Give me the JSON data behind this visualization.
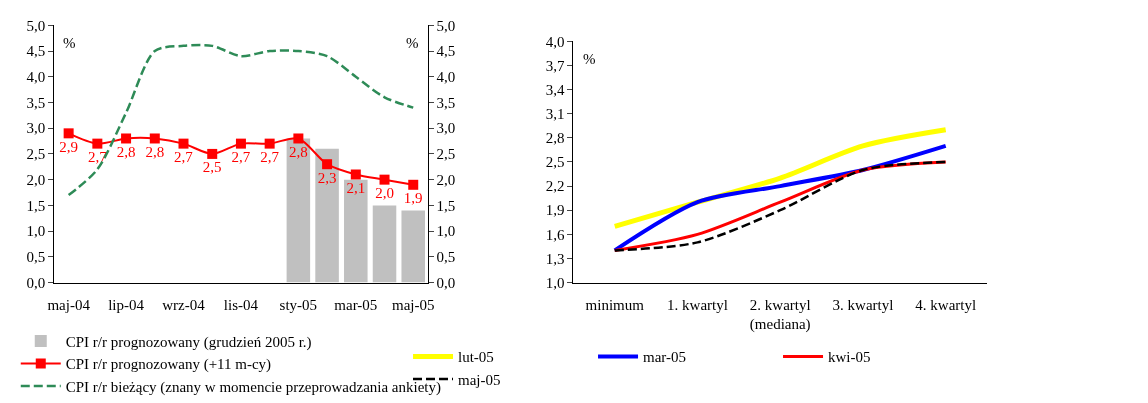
{
  "chart_data": [
    {
      "type": "line",
      "ylabel": "%",
      "y2label": "%",
      "categories": [
        "maj-04",
        null,
        "lip-04",
        null,
        "wrz-04",
        null,
        "lis-04",
        null,
        "sty-05",
        null,
        "mar-05",
        null,
        "maj-05"
      ],
      "series": [
        {
          "name": "CPI r/r prognozowany (grudzień 2005 r.)",
          "type": "bar",
          "color": "#c0c0c0",
          "values": [
            null,
            null,
            null,
            null,
            null,
            null,
            null,
            null,
            2.8,
            2.6,
            2.0,
            1.5,
            1.4
          ]
        },
        {
          "name": "CPI r/r prognozowany (+11 m-cy)",
          "type": "line",
          "color": "#ff0000",
          "marker": "square",
          "line_style": "solid",
          "values": [
            2.9,
            2.7,
            2.8,
            2.8,
            2.7,
            2.5,
            2.7,
            2.7,
            2.8,
            2.3,
            2.1,
            2.0,
            1.9
          ],
          "value_labels": [
            "2,9",
            "2,7",
            "2,8",
            "2,8",
            "2,7",
            "2,5",
            "2,7",
            "2,7",
            "2,8",
            "2,3",
            "2,1",
            "2,0",
            "1,9"
          ]
        },
        {
          "name": "CPI r/r bieżący (znany w momencie przeprowadzania ankiety)",
          "type": "line",
          "axis": "y2",
          "color": "#2e8b57",
          "line_style": "dashed",
          "values": [
            1.7,
            2.2,
            3.3,
            4.5,
            4.6,
            4.6,
            4.4,
            4.5,
            4.5,
            4.4,
            4.0,
            3.6,
            3.4
          ]
        }
      ],
      "ylim": [
        0,
        5
      ],
      "yticks": [
        {
          "value": 0,
          "label": "0,0"
        },
        {
          "value": 0.5,
          "label": "0,5"
        },
        {
          "value": 1,
          "label": "1,0"
        },
        {
          "value": 1.5,
          "label": "1,5"
        },
        {
          "value": 2,
          "label": "2,0"
        },
        {
          "value": 2.5,
          "label": "2,5"
        },
        {
          "value": 3,
          "label": "3,0"
        },
        {
          "value": 3.5,
          "label": "3,5"
        },
        {
          "value": 4,
          "label": "4,0"
        },
        {
          "value": 4.5,
          "label": "4,5"
        },
        {
          "value": 5,
          "label": "5,0"
        }
      ],
      "y2lim": [
        0,
        5
      ],
      "y2ticks": [
        {
          "value": 0,
          "label": "0,0"
        },
        {
          "value": 0.5,
          "label": "0,5"
        },
        {
          "value": 1,
          "label": "1,0"
        },
        {
          "value": 1.5,
          "label": "1,5"
        },
        {
          "value": 2,
          "label": "2,0"
        },
        {
          "value": 2.5,
          "label": "2,5"
        },
        {
          "value": 3,
          "label": "3,0"
        },
        {
          "value": 3.5,
          "label": "3,5"
        },
        {
          "value": 4,
          "label": "4,0"
        },
        {
          "value": 4.5,
          "label": "4,5"
        },
        {
          "value": 5,
          "label": "5,0"
        }
      ],
      "grid": false,
      "legend": "bottom"
    },
    {
      "type": "line",
      "ylabel": "%",
      "categories": [
        "minimum",
        "1. kwartyl",
        "2. kwartyl\n(mediana)",
        "3. kwartyl",
        "4. kwartyl"
      ],
      "series": [
        {
          "name": "lut-05",
          "color": "#ffff00",
          "line_style": "solid",
          "values": [
            1.7,
            2.0,
            2.3,
            2.7,
            2.9
          ]
        },
        {
          "name": "mar-05",
          "color": "#0000ff",
          "line_style": "solid",
          "values": [
            1.4,
            2.0,
            2.2,
            2.4,
            2.7
          ]
        },
        {
          "name": "kwi-05",
          "color": "#ff0000",
          "line_style": "solid",
          "values": [
            1.4,
            1.6,
            2.0,
            2.4,
            2.5
          ]
        },
        {
          "name": "maj-05",
          "color": "#000000",
          "line_style": "dashed",
          "values": [
            1.4,
            1.5,
            1.9,
            2.4,
            2.5
          ]
        }
      ],
      "ylim": [
        1,
        4
      ],
      "yticks": [
        {
          "value": 1,
          "label": "1,0"
        },
        {
          "value": 1.3,
          "label": "1,3"
        },
        {
          "value": 1.6,
          "label": "1,6"
        },
        {
          "value": 1.9,
          "label": "1,9"
        },
        {
          "value": 2.2,
          "label": "2,2"
        },
        {
          "value": 2.5,
          "label": "2,5"
        },
        {
          "value": 2.8,
          "label": "2,8"
        },
        {
          "value": 3.1,
          "label": "3,1"
        },
        {
          "value": 3.4,
          "label": "3,4"
        },
        {
          "value": 3.7,
          "label": "3,7"
        },
        {
          "value": 4,
          "label": "4,0"
        }
      ],
      "grid": false,
      "legend": "bottom"
    }
  ]
}
